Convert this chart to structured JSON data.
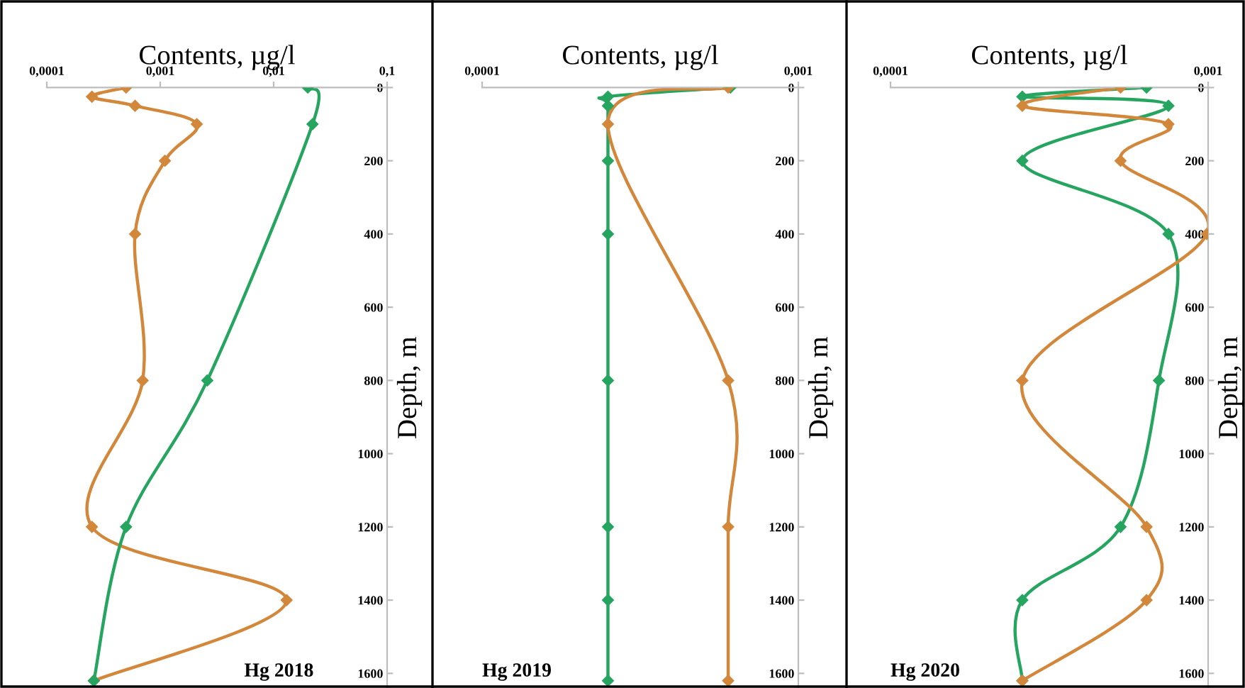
{
  "chart_data": [
    {
      "type": "line",
      "orientation": "horizontal",
      "log": "x",
      "marker": "diamond",
      "line_style": "solid",
      "grid": false,
      "legend": false,
      "xlabel": "Contents, µg/l",
      "ylabel": "Depth, m",
      "annotations": [
        "Hg 2018"
      ],
      "xlim": [
        0.0001,
        0.1
      ],
      "xticks": [
        {
          "value": 0.0001,
          "label": "0,0001"
        },
        {
          "value": 0.001,
          "label": "0,001"
        },
        {
          "value": 0.01,
          "label": "0,01"
        },
        {
          "value": 0.1,
          "label": "0,1"
        }
      ],
      "ylim": [
        1640,
        0
      ],
      "yticks": [
        0,
        200,
        400,
        600,
        800,
        1000,
        1200,
        1400,
        1600
      ],
      "series": [
        {
          "color": "#d2873a",
          "x": [
            0,
            25,
            50,
            100,
            200,
            400,
            800,
            1200,
            1400,
            1620
          ],
          "values": [
            0.0005,
            0.00025,
            0.0006,
            0.0021,
            0.0011,
            0.0006,
            0.0007,
            0.00025,
            0.013,
            0.00026
          ]
        },
        {
          "color": "#25a55f",
          "x": [
            0,
            100,
            800,
            1200,
            1620
          ],
          "values": [
            0.02,
            0.022,
            0.0026,
            0.0005,
            0.00026
          ]
        }
      ]
    },
    {
      "type": "line",
      "orientation": "horizontal",
      "log": "x",
      "marker": "diamond",
      "line_style": "solid",
      "grid": false,
      "legend": false,
      "xlabel": "Contents, µg/l",
      "ylabel": "Depth, m",
      "annotations": [
        "Hg 2019"
      ],
      "xlim": [
        0.0001,
        0.001
      ],
      "xticks": [
        {
          "value": 0.0001,
          "label": "0,0001"
        },
        {
          "value": 0.001,
          "label": "0,001"
        }
      ],
      "ylim": [
        1640,
        0
      ],
      "yticks": [
        0,
        200,
        400,
        600,
        800,
        1000,
        1200,
        1400,
        1600
      ],
      "series": [
        {
          "color": "#25a55f",
          "x": [
            0,
            25,
            50,
            200,
            400,
            800,
            1200,
            1400,
            1620
          ],
          "values": [
            0.00061,
            0.00025,
            0.00025,
            0.00025,
            0.00025,
            0.00025,
            0.00025,
            0.00025,
            0.00025
          ]
        },
        {
          "color": "#d2873a",
          "x": [
            0,
            100,
            800,
            1200,
            1620
          ],
          "values": [
            0.0006,
            0.00025,
            0.0006,
            0.0006,
            0.0006
          ]
        }
      ]
    },
    {
      "type": "line",
      "orientation": "horizontal",
      "log": "x",
      "marker": "diamond",
      "line_style": "solid",
      "grid": false,
      "legend": false,
      "xlabel": "Contents, µg/l",
      "ylabel": "Depth, m",
      "annotations": [
        "Hg 2020"
      ],
      "xlim": [
        0.0001,
        0.001
      ],
      "xticks": [
        {
          "value": 0.0001,
          "label": "0,0001"
        },
        {
          "value": 0.001,
          "label": "0,001"
        }
      ],
      "ylim": [
        1640,
        0
      ],
      "yticks": [
        0,
        200,
        400,
        600,
        800,
        1000,
        1200,
        1400,
        1600
      ],
      "series": [
        {
          "color": "#25a55f",
          "x": [
            0,
            25,
            50,
            200,
            400,
            800,
            1200,
            1400,
            1620
          ],
          "values": [
            0.00064,
            0.00026,
            0.00075,
            0.00026,
            0.00075,
            0.0007,
            0.00053,
            0.00026,
            0.00026
          ]
        },
        {
          "color": "#d2873a",
          "x": [
            0,
            50,
            100,
            200,
            400,
            800,
            1200,
            1400,
            1620
          ],
          "values": [
            0.00053,
            0.00026,
            0.00075,
            0.00053,
            0.00099,
            0.00026,
            0.00064,
            0.00064,
            0.00026
          ]
        }
      ]
    }
  ]
}
